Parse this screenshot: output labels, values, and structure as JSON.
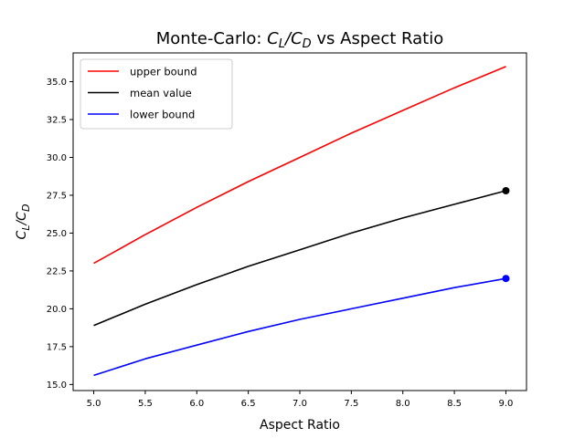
{
  "chart_data": {
    "type": "line",
    "title_parts": [
      "Monte-Carlo: ",
      "C",
      "L",
      "/",
      "C",
      "D",
      " vs Aspect Ratio"
    ],
    "xlabel": "Aspect Ratio",
    "ylabel_parts": [
      "C",
      "L",
      "/",
      "C",
      "D"
    ],
    "xlim": [
      4.8,
      9.2
    ],
    "ylim": [
      14.6,
      36.9
    ],
    "x_ticks": [
      5.0,
      5.5,
      6.0,
      6.5,
      7.0,
      7.5,
      8.0,
      8.5,
      9.0
    ],
    "x_tick_labels": [
      "5.0",
      "5.5",
      "6.0",
      "6.5",
      "7.0",
      "7.5",
      "8.0",
      "8.5",
      "9.0"
    ],
    "y_ticks": [
      15.0,
      17.5,
      20.0,
      22.5,
      25.0,
      27.5,
      30.0,
      32.5,
      35.0
    ],
    "y_tick_labels": [
      "15.0",
      "17.5",
      "20.0",
      "22.5",
      "25.0",
      "27.5",
      "30.0",
      "32.5",
      "35.0"
    ],
    "grid": false,
    "legend_position": "top-left",
    "x": [
      5.0,
      5.5,
      6.0,
      6.5,
      7.0,
      7.5,
      8.0,
      8.5,
      9.0
    ],
    "series": [
      {
        "name": "upper bound",
        "color": "#ff0000",
        "values": [
          23.0,
          24.9,
          26.7,
          28.4,
          30.0,
          31.6,
          33.1,
          34.6,
          36.0
        ],
        "end_marker": false
      },
      {
        "name": "mean value",
        "color": "#000000",
        "values": [
          18.9,
          20.3,
          21.6,
          22.8,
          23.9,
          25.0,
          26.0,
          26.9,
          27.8
        ],
        "end_marker": true
      },
      {
        "name": "lower bound",
        "color": "#0000ff",
        "values": [
          15.6,
          16.7,
          17.6,
          18.5,
          19.3,
          20.0,
          20.7,
          21.4,
          22.0
        ],
        "end_marker": true
      }
    ]
  }
}
